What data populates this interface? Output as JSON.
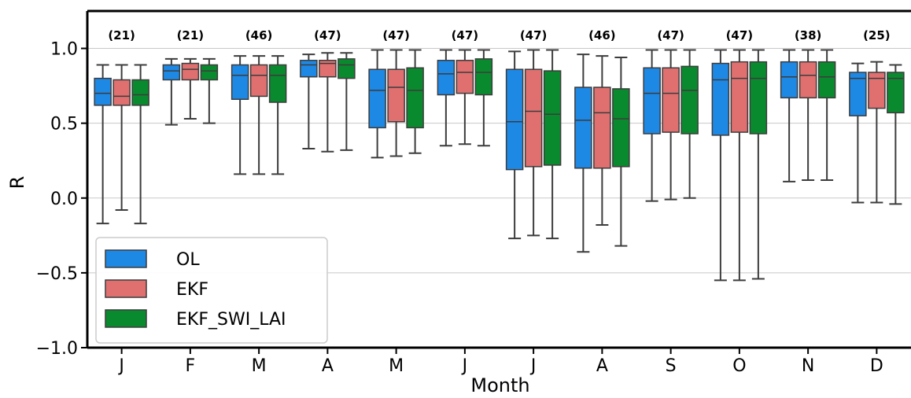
{
  "chart_data": {
    "type": "box",
    "xlabel": "Month",
    "ylabel": "R",
    "ylim": [
      -1.0,
      1.25
    ],
    "yticks": [
      1.0,
      0.5,
      0.0,
      -0.5,
      -1.0
    ],
    "ytick_labels": [
      "1.0",
      "0.5",
      "0.0",
      "−0.5",
      "−1.0"
    ],
    "grid": "horizontal",
    "legend_position": "bottom-left",
    "categories": [
      "J",
      "F",
      "M",
      "A",
      "M",
      "J",
      "J",
      "A",
      "S",
      "O",
      "N",
      "D"
    ],
    "counts": [
      "(21)",
      "(21)",
      "(46)",
      "(47)",
      "(47)",
      "(47)",
      "(47)",
      "(46)",
      "(47)",
      "(47)",
      "(38)",
      "(25)"
    ],
    "series": [
      {
        "name": "OL",
        "color": "#1e88e5",
        "boxes": [
          {
            "min": -0.17,
            "q1": 0.62,
            "median": 0.7,
            "q3": 0.8,
            "max": 0.89
          },
          {
            "min": 0.49,
            "q1": 0.79,
            "median": 0.85,
            "q3": 0.89,
            "max": 0.93
          },
          {
            "min": 0.16,
            "q1": 0.66,
            "median": 0.82,
            "q3": 0.89,
            "max": 0.95
          },
          {
            "min": 0.33,
            "q1": 0.81,
            "median": 0.89,
            "q3": 0.92,
            "max": 0.96
          },
          {
            "min": 0.27,
            "q1": 0.47,
            "median": 0.72,
            "q3": 0.86,
            "max": 0.99
          },
          {
            "min": 0.35,
            "q1": 0.69,
            "median": 0.83,
            "q3": 0.92,
            "max": 0.99
          },
          {
            "min": -0.27,
            "q1": 0.19,
            "median": 0.51,
            "q3": 0.86,
            "max": 0.98
          },
          {
            "min": -0.36,
            "q1": 0.2,
            "median": 0.52,
            "q3": 0.74,
            "max": 0.96
          },
          {
            "min": -0.02,
            "q1": 0.43,
            "median": 0.7,
            "q3": 0.87,
            "max": 0.99
          },
          {
            "min": -0.55,
            "q1": 0.42,
            "median": 0.79,
            "q3": 0.9,
            "max": 0.99
          },
          {
            "min": 0.11,
            "q1": 0.67,
            "median": 0.81,
            "q3": 0.91,
            "max": 0.99
          },
          {
            "min": -0.03,
            "q1": 0.55,
            "median": 0.8,
            "q3": 0.84,
            "max": 0.9
          }
        ]
      },
      {
        "name": "EKF",
        "color": "#e07070",
        "boxes": [
          {
            "min": -0.08,
            "q1": 0.62,
            "median": 0.68,
            "q3": 0.79,
            "max": 0.89
          },
          {
            "min": 0.53,
            "q1": 0.79,
            "median": 0.86,
            "q3": 0.9,
            "max": 0.93
          },
          {
            "min": 0.16,
            "q1": 0.68,
            "median": 0.82,
            "q3": 0.89,
            "max": 0.95
          },
          {
            "min": 0.31,
            "q1": 0.81,
            "median": 0.9,
            "q3": 0.92,
            "max": 0.97
          },
          {
            "min": 0.28,
            "q1": 0.51,
            "median": 0.74,
            "q3": 0.86,
            "max": 0.99
          },
          {
            "min": 0.36,
            "q1": 0.7,
            "median": 0.84,
            "q3": 0.92,
            "max": 0.99
          },
          {
            "min": -0.25,
            "q1": 0.21,
            "median": 0.58,
            "q3": 0.86,
            "max": 0.99
          },
          {
            "min": -0.18,
            "q1": 0.2,
            "median": 0.57,
            "q3": 0.74,
            "max": 0.95
          },
          {
            "min": -0.01,
            "q1": 0.44,
            "median": 0.7,
            "q3": 0.87,
            "max": 0.99
          },
          {
            "min": -0.55,
            "q1": 0.44,
            "median": 0.8,
            "q3": 0.91,
            "max": 0.99
          },
          {
            "min": 0.12,
            "q1": 0.67,
            "median": 0.82,
            "q3": 0.91,
            "max": 0.99
          },
          {
            "min": -0.03,
            "q1": 0.6,
            "median": 0.8,
            "q3": 0.84,
            "max": 0.91
          }
        ]
      },
      {
        "name": "EKF_SWI_LAI",
        "color": "#0a8a2e",
        "boxes": [
          {
            "min": -0.17,
            "q1": 0.62,
            "median": 0.69,
            "q3": 0.79,
            "max": 0.89
          },
          {
            "min": 0.5,
            "q1": 0.79,
            "median": 0.85,
            "q3": 0.89,
            "max": 0.93
          },
          {
            "min": 0.16,
            "q1": 0.64,
            "median": 0.82,
            "q3": 0.89,
            "max": 0.95
          },
          {
            "min": 0.32,
            "q1": 0.8,
            "median": 0.89,
            "q3": 0.93,
            "max": 0.97
          },
          {
            "min": 0.3,
            "q1": 0.47,
            "median": 0.72,
            "q3": 0.87,
            "max": 0.99
          },
          {
            "min": 0.35,
            "q1": 0.69,
            "median": 0.84,
            "q3": 0.93,
            "max": 0.99
          },
          {
            "min": -0.27,
            "q1": 0.22,
            "median": 0.56,
            "q3": 0.85,
            "max": 0.99
          },
          {
            "min": -0.32,
            "q1": 0.21,
            "median": 0.53,
            "q3": 0.73,
            "max": 0.94
          },
          {
            "min": 0.0,
            "q1": 0.43,
            "median": 0.72,
            "q3": 0.88,
            "max": 0.99
          },
          {
            "min": -0.54,
            "q1": 0.43,
            "median": 0.8,
            "q3": 0.91,
            "max": 0.99
          },
          {
            "min": 0.12,
            "q1": 0.67,
            "median": 0.81,
            "q3": 0.91,
            "max": 0.99
          },
          {
            "min": -0.04,
            "q1": 0.57,
            "median": 0.8,
            "q3": 0.84,
            "max": 0.89
          }
        ]
      }
    ]
  }
}
